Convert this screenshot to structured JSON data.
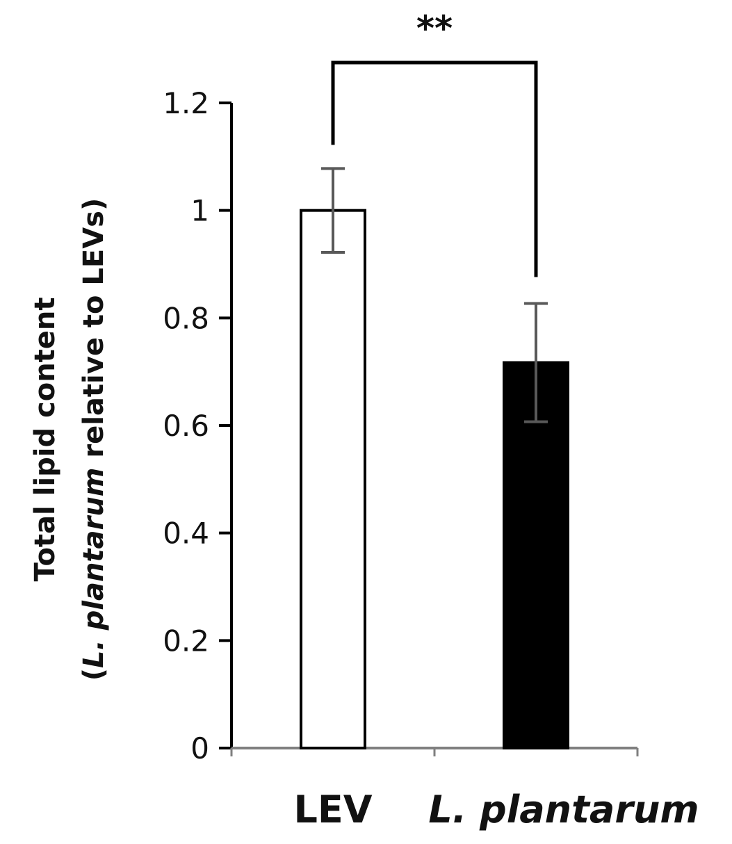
{
  "chart_data": {
    "type": "bar",
    "categories": [
      "LEV",
      "L. plantarum"
    ],
    "category_italic": [
      false,
      true
    ],
    "values": [
      1.0,
      0.717
    ],
    "errors": [
      0.078,
      0.11
    ],
    "bar_fill": [
      "#ffffff",
      "#000000"
    ],
    "bar_stroke": "#000000",
    "error_bar_color": "#595959",
    "axis_color": "#000000",
    "baseline_color": "#7f7f7f",
    "ylim": [
      0,
      1.2
    ],
    "yticks": [
      0,
      0.2,
      0.4,
      0.6,
      0.8,
      1,
      1.2
    ],
    "ytick_labels": [
      "0",
      "0.2",
      "0.4",
      "0.6",
      "0.8",
      "1",
      "1.2"
    ],
    "ylabel_line1": "Total lipid content",
    "ylabel_line2_open": "(",
    "ylabel_line2_italic": "L. plantarum",
    "ylabel_line2_rest": " relative to LEVs)",
    "significance": {
      "label": "**",
      "between": [
        0,
        1
      ]
    },
    "grid": false
  }
}
